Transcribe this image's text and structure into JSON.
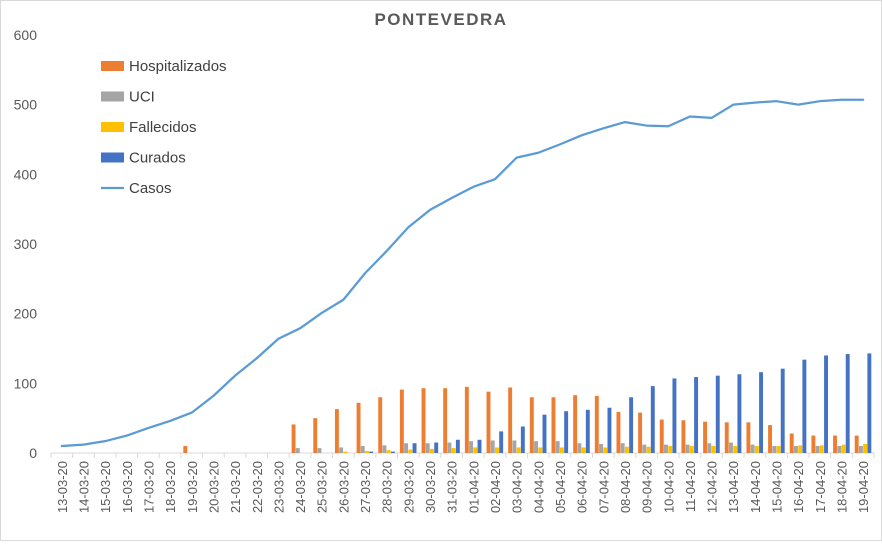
{
  "chart_data": {
    "type": "bar",
    "title": "PONTEVEDRA",
    "xlabel": "",
    "ylabel": "",
    "ylim": [
      0,
      600
    ],
    "yticks": [
      0,
      100,
      200,
      300,
      400,
      500,
      600
    ],
    "grid": false,
    "legend_position": "top-left",
    "categories": [
      "13-03-20",
      "14-03-20",
      "15-03-20",
      "16-03-20",
      "17-03-20",
      "18-03-20",
      "19-03-20",
      "20-03-20",
      "21-03-20",
      "22-03-20",
      "23-03-20",
      "24-03-20",
      "25-03-20",
      "26-03-20",
      "27-03-20",
      "28-03-20",
      "29-03-20",
      "30-03-20",
      "31-03-20",
      "01-04-20",
      "02-04-20",
      "03-04-20",
      "04-04-20",
      "05-04-20",
      "06-04-20",
      "07-04-20",
      "08-04-20",
      "09-04-20",
      "10-04-20",
      "11-04-20",
      "12-04-20",
      "13-04-20",
      "14-04-20",
      "15-04-20",
      "16-04-20",
      "17-04-20",
      "18-04-20",
      "19-04-20"
    ],
    "series": [
      {
        "name": "Hospitalizados",
        "kind": "bar",
        "color": "#ED7D31",
        "values": [
          0,
          0,
          0,
          0,
          0,
          0,
          10,
          0,
          0,
          0,
          0,
          41,
          50,
          63,
          72,
          80,
          91,
          93,
          93,
          95,
          88,
          94,
          80,
          80,
          83,
          82,
          59,
          58,
          48,
          47,
          45,
          44,
          44,
          40,
          28,
          25,
          25,
          25
        ]
      },
      {
        "name": "UCI",
        "kind": "bar",
        "color": "#A5A5A5",
        "values": [
          0,
          0,
          0,
          0,
          0,
          0,
          0,
          0,
          0,
          0,
          0,
          7,
          7,
          8,
          10,
          11,
          14,
          14,
          15,
          17,
          18,
          18,
          17,
          17,
          14,
          13,
          14,
          12,
          12,
          12,
          14,
          15,
          12,
          10,
          10,
          10,
          10,
          10
        ]
      },
      {
        "name": "Fallecidos",
        "kind": "bar",
        "color": "#FFC000",
        "values": [
          0,
          0,
          0,
          0,
          0,
          0,
          0,
          0,
          0,
          0,
          0,
          0,
          0,
          2,
          3,
          4,
          5,
          6,
          7,
          8,
          8,
          8,
          8,
          8,
          8,
          8,
          9,
          9,
          10,
          10,
          10,
          10,
          10,
          10,
          11,
          11,
          12,
          13
        ]
      },
      {
        "name": "Curados",
        "kind": "bar",
        "color": "#4472C4",
        "values": [
          0,
          0,
          0,
          0,
          0,
          0,
          0,
          0,
          0,
          0,
          0,
          0,
          0,
          0,
          2,
          2,
          14,
          15,
          19,
          19,
          31,
          38,
          55,
          60,
          62,
          65,
          80,
          96,
          107,
          109,
          111,
          113,
          116,
          121,
          134,
          140,
          142,
          143
        ]
      },
      {
        "name": "Casos",
        "kind": "line",
        "color": "#5B9BD5",
        "values": [
          10,
          12,
          17,
          25,
          36,
          46,
          58,
          82,
          111,
          136,
          164,
          179,
          201,
          220,
          258,
          290,
          324,
          349,
          366,
          382,
          393,
          424,
          431,
          443,
          456,
          466,
          475,
          470,
          469,
          483,
          481,
          500,
          503,
          505,
          500,
          505,
          507,
          507
        ]
      }
    ]
  }
}
